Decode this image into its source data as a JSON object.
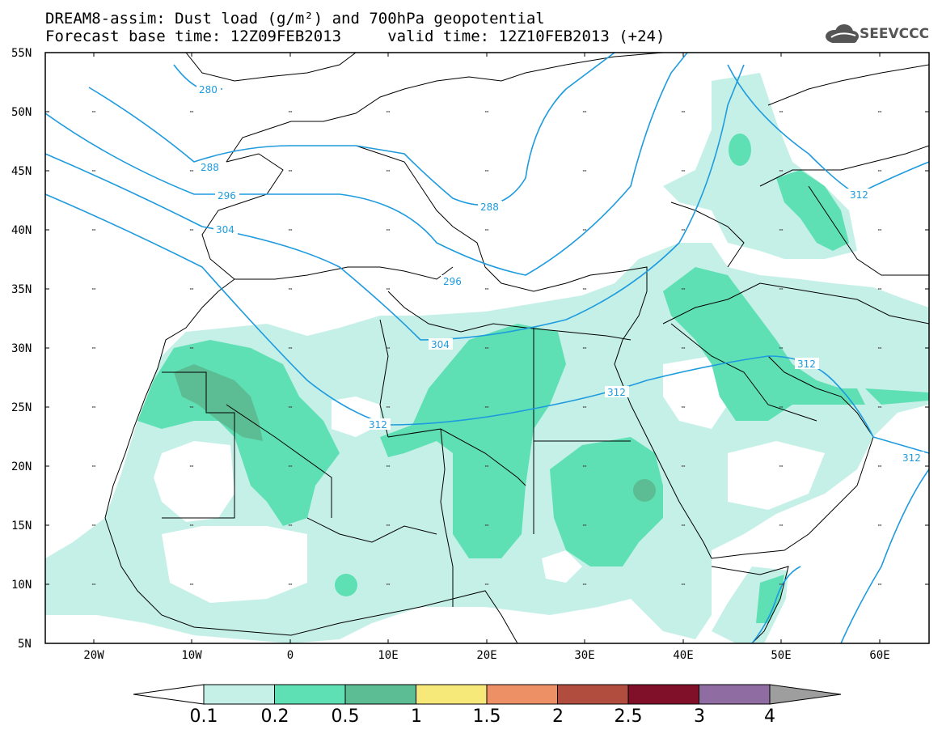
{
  "header": {
    "title_line1": "DREAM8-assim: Dust load (g/m²) and 700hPa geopotential",
    "title_line2": "Forecast base time: 12Z09FEB2013     valid time: 12Z10FEB2013 (+24)",
    "logo_text": "SEEVCCC"
  },
  "map": {
    "lat_labels": [
      "55N",
      "50N",
      "45N",
      "40N",
      "35N",
      "30N",
      "25N",
      "20N",
      "15N",
      "10N",
      "5N"
    ],
    "lon_labels": [
      "20W",
      "10W",
      "0",
      "10E",
      "20E",
      "30E",
      "40E",
      "50E",
      "60E"
    ],
    "contour_labels": [
      "280",
      "288",
      "296",
      "304",
      "288",
      "296",
      "304",
      "312",
      "312",
      "312",
      "312",
      "312"
    ]
  },
  "colorbar": {
    "ticks": [
      "0.1",
      "0.2",
      "0.5",
      "1",
      "1.5",
      "2",
      "2.5",
      "3",
      "4"
    ],
    "colors": [
      "#c5f0e7",
      "#5ee0b4",
      "#5cbc94",
      "#f7e87a",
      "#ee9066",
      "#b04d3e",
      "#800f2a",
      "#8f6ca1",
      "#9e9e9e"
    ]
  },
  "colors": {
    "level_01": "#c5f0e7",
    "level_02": "#5ee0b4",
    "level_05": "#5cbc94",
    "contour": "#1e9bde",
    "border": "#000000"
  }
}
